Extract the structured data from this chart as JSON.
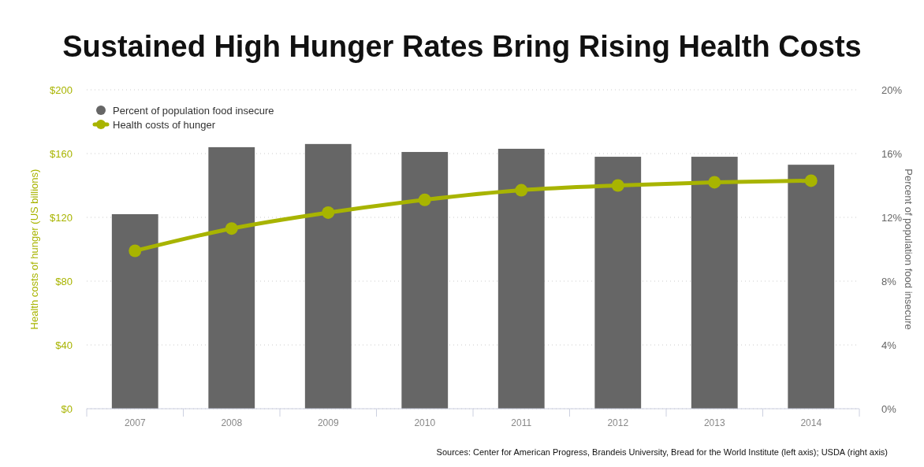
{
  "chart_data": {
    "type": "bar",
    "title": "Sustained High Hunger Rates Bring Rising Health Costs",
    "ylabel": "Health costs of hunger (US billions)",
    "y2label": "Percent of population food insecure",
    "categories": [
      "2007",
      "2008",
      "2009",
      "2010",
      "2011",
      "2012",
      "2013",
      "2014"
    ],
    "series": [
      {
        "name": "Percent of population food insecure",
        "axis": "y2",
        "color": "#666666",
        "values": [
          12.2,
          16.4,
          16.6,
          16.1,
          16.3,
          15.8,
          15.8,
          15.3
        ]
      },
      {
        "name": "Health costs of hunger",
        "type": "line",
        "axis": "y",
        "color": "#a8b400",
        "values": [
          99,
          113,
          123,
          131,
          137,
          140,
          142,
          143
        ]
      }
    ],
    "ylim": [
      0,
      200
    ],
    "yticks": [
      {
        "value": 0,
        "label": "$0"
      },
      {
        "value": 40,
        "label": "$40"
      },
      {
        "value": 80,
        "label": "$80"
      },
      {
        "value": 120,
        "label": "$120"
      },
      {
        "value": 160,
        "label": "$160"
      },
      {
        "value": 200,
        "label": "$200"
      }
    ],
    "y2lim": [
      0,
      20
    ],
    "y2ticks": [
      {
        "value": 0,
        "label": "0%"
      },
      {
        "value": 4,
        "label": "4%"
      },
      {
        "value": 8,
        "label": "8%"
      },
      {
        "value": 12,
        "label": "12%"
      },
      {
        "value": 16,
        "label": "16%"
      },
      {
        "value": 20,
        "label": "20%"
      }
    ],
    "grid": "y",
    "legend": "top left",
    "marker": "circle",
    "annotations": [
      "Sources: Center for American Progress, Brandeis University, Bread for the World Institute (left axis); USDA (right axis)"
    ]
  }
}
